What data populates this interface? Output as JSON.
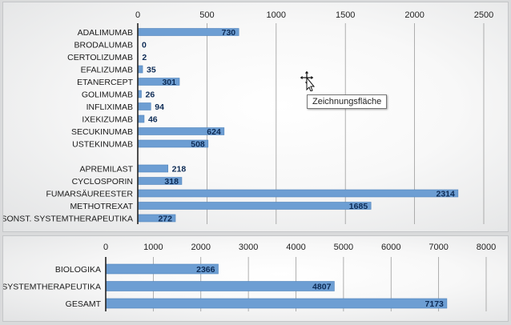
{
  "chart_data": [
    {
      "type": "bar",
      "orientation": "horizontal",
      "xlim": [
        0,
        2500
      ],
      "ticks": [
        "0",
        "500",
        "1000",
        "1500",
        "2000",
        "2500"
      ],
      "tick_values": [
        0,
        500,
        1000,
        1500,
        2000,
        2500
      ],
      "categories": [
        "ADALIMUMAB",
        "BRODALUMAB",
        "CERTOLIZUMAB",
        "EFALIZUMAB",
        "ETANERCEPT",
        "GOLIMUMAB",
        "INFLIXIMAB",
        "IXEKIZUMAB",
        "SECUKINUMAB",
        "USTEKINUMAB",
        "",
        "APREMILAST",
        "CYCLOSPORIN",
        "FUMARSÄUREESTER",
        "METHOTREXAT",
        "SONST. SYSTEMTHERAPEUTIKA"
      ],
      "values": [
        730,
        0,
        2,
        35,
        301,
        26,
        94,
        46,
        624,
        508,
        null,
        218,
        318,
        2314,
        1685,
        272
      ],
      "data_labels": [
        "730",
        "0",
        "2",
        "35",
        "301",
        "26",
        "94",
        "46",
        "624",
        "508",
        "",
        "218",
        "318",
        "2314",
        "1685",
        "272"
      ],
      "grid": true,
      "axis_position": "top"
    },
    {
      "type": "bar",
      "orientation": "horizontal",
      "xlim": [
        0,
        8000
      ],
      "ticks": [
        "0",
        "1000",
        "2000",
        "3000",
        "4000",
        "5000",
        "6000",
        "7000",
        "8000"
      ],
      "tick_values": [
        0,
        1000,
        2000,
        3000,
        4000,
        5000,
        6000,
        7000,
        8000
      ],
      "categories": [
        "BIOLOGIKA",
        "SYSTEMTHERAPEUTIKA",
        "GESAMT"
      ],
      "values": [
        2366,
        4807,
        7173
      ],
      "data_labels": [
        "2366",
        "4807",
        "7173"
      ],
      "grid": true,
      "axis_position": "top"
    }
  ],
  "tooltip": {
    "text": "Zeichnungsfläche"
  },
  "icons": {
    "cursor": "move-cursor-icon"
  },
  "colors": {
    "bar": "#6d9ed3",
    "data_label": "#0d2b55"
  }
}
